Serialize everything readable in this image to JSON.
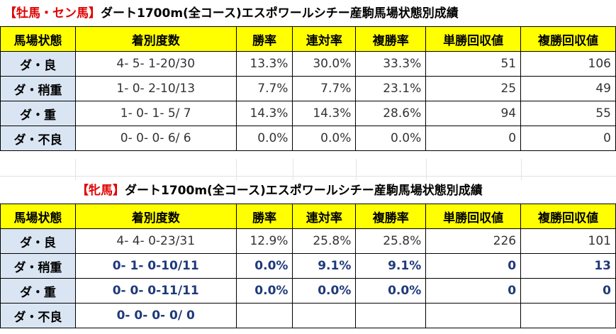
{
  "table1": {
    "title_tag": "【牡馬・セン馬】",
    "title_text": "ダート1700m(全コース)エスポワールシチー産駒馬場状態別成績",
    "headers": [
      "馬場状態",
      "着別度数",
      "勝率",
      "連対率",
      "複勝率",
      "単勝回収値",
      "複勝回収値"
    ],
    "rows": [
      {
        "cond": "ダ・良",
        "record": "4- 5- 1-20/30",
        "win": "13.3%",
        "ren": "30.0%",
        "fuku": "33.3%",
        "tan_ret": "51",
        "fuku_ret": "106"
      },
      {
        "cond": "ダ・稍重",
        "record": "1- 0- 2-10/13",
        "win": "7.7%",
        "ren": "7.7%",
        "fuku": "23.1%",
        "tan_ret": "25",
        "fuku_ret": "49"
      },
      {
        "cond": "ダ・重",
        "record": "1- 0- 1- 5/ 7",
        "win": "14.3%",
        "ren": "14.3%",
        "fuku": "28.6%",
        "tan_ret": "94",
        "fuku_ret": "55"
      },
      {
        "cond": "ダ・不良",
        "record": "0- 0- 0- 6/ 6",
        "win": "0.0%",
        "ren": "0.0%",
        "fuku": "0.0%",
        "tan_ret": "0",
        "fuku_ret": "0"
      }
    ]
  },
  "table2": {
    "title_tag": "【牝馬】",
    "title_text": "ダート1700m(全コース)エスポワールシチー産駒馬場状態別成績",
    "headers": [
      "馬場状態",
      "着別度数",
      "勝率",
      "連対率",
      "複勝率",
      "単勝回収値",
      "複勝回収値"
    ],
    "rows": [
      {
        "cond": "ダ・良",
        "record": "4- 4- 0-23/31",
        "win": "12.9%",
        "ren": "25.8%",
        "fuku": "25.8%",
        "tan_ret": "226",
        "fuku_ret": "101"
      },
      {
        "cond": "ダ・稍重",
        "record": "0- 1- 0-10/11",
        "win": "0.0%",
        "ren": "9.1%",
        "fuku": "9.1%",
        "tan_ret": "0",
        "fuku_ret": "13"
      },
      {
        "cond": "ダ・重",
        "record": "0- 0- 0-11/11",
        "win": "0.0%",
        "ren": "0.0%",
        "fuku": "0.0%",
        "tan_ret": "0",
        "fuku_ret": "0"
      },
      {
        "cond": "ダ・不良",
        "record": "0- 0- 0- 0/ 0",
        "win": "",
        "ren": "",
        "fuku": "",
        "tan_ret": "",
        "fuku_ret": ""
      }
    ]
  }
}
